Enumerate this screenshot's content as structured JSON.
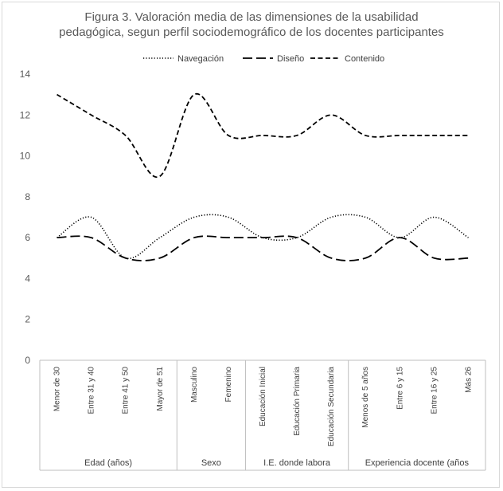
{
  "chart_data": {
    "type": "line",
    "title": [
      "Figura 3. Valoración media de las dimensiones de la usabilidad",
      "pedagógica, segun perfil sociodemográfico de los docentes participantes"
    ],
    "categories": [
      "Menor de 30",
      "Entre 31 y 40",
      "Entre 41 y 50",
      "Mayor de 51",
      "Masculino",
      "Femenino",
      "Educación Inicial",
      "Educación Primaria",
      "Educación Secundaria",
      "Menos de 5 años",
      "Entre 6 y 15",
      "Entre 16 y 25",
      "Más 26"
    ],
    "groups": [
      {
        "label": "Edad (años)",
        "count": 4
      },
      {
        "label": "Sexo",
        "count": 2
      },
      {
        "label": "I.E. donde labora",
        "count": 3
      },
      {
        "label": "Experiencia docente (años",
        "count": 4
      }
    ],
    "series": [
      {
        "name": "Navegación",
        "style": "dotted",
        "values": [
          6,
          7,
          5,
          6,
          7,
          7,
          6,
          6,
          7,
          7,
          6,
          7,
          6
        ]
      },
      {
        "name": "Diseño",
        "style": "long-dash",
        "values": [
          6,
          6,
          5,
          5,
          6,
          6,
          6,
          6,
          5,
          5,
          6,
          5,
          5
        ]
      },
      {
        "name": "Contenido",
        "style": "dash",
        "values": [
          13,
          12,
          11,
          9,
          13,
          11,
          11,
          11,
          12,
          11,
          11,
          11,
          11
        ]
      }
    ],
    "ylim": [
      0,
      14
    ],
    "yticks": [
      0,
      2,
      4,
      6,
      8,
      10,
      12,
      14
    ],
    "legend": "top",
    "grid": false
  }
}
